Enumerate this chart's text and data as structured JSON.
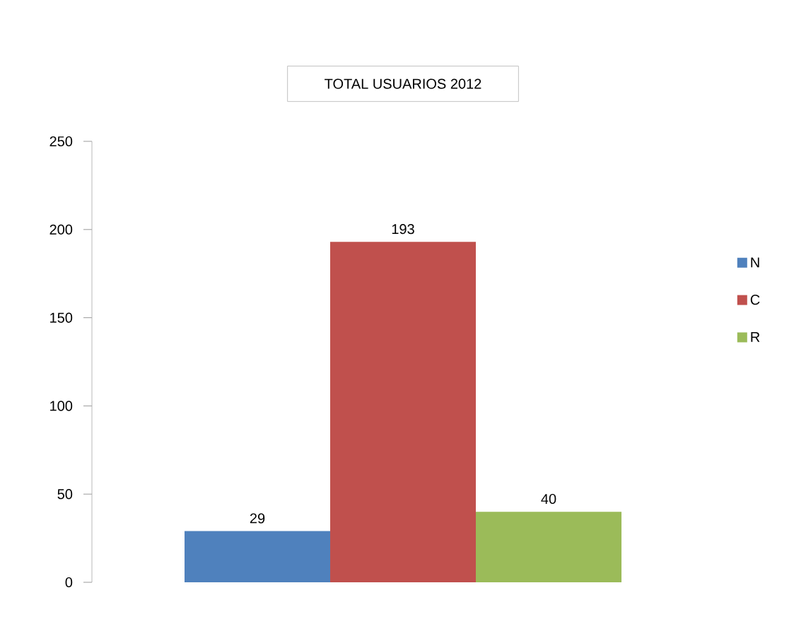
{
  "chart_data": {
    "type": "bar",
    "title": "TOTAL USUARIOS 2012",
    "categories": [
      null
    ],
    "series": [
      {
        "name": "N",
        "color": "#4f81bd",
        "values": [
          29
        ]
      },
      {
        "name": "C",
        "color": "#c0504d",
        "values": [
          193
        ]
      },
      {
        "name": "R",
        "color": "#9bbb59",
        "values": [
          40
        ]
      }
    ],
    "ylim": [
      0,
      250
    ],
    "yticks": [
      0,
      50,
      100,
      150,
      200,
      250
    ],
    "data_labels": true,
    "grid": false,
    "legend": "right"
  }
}
